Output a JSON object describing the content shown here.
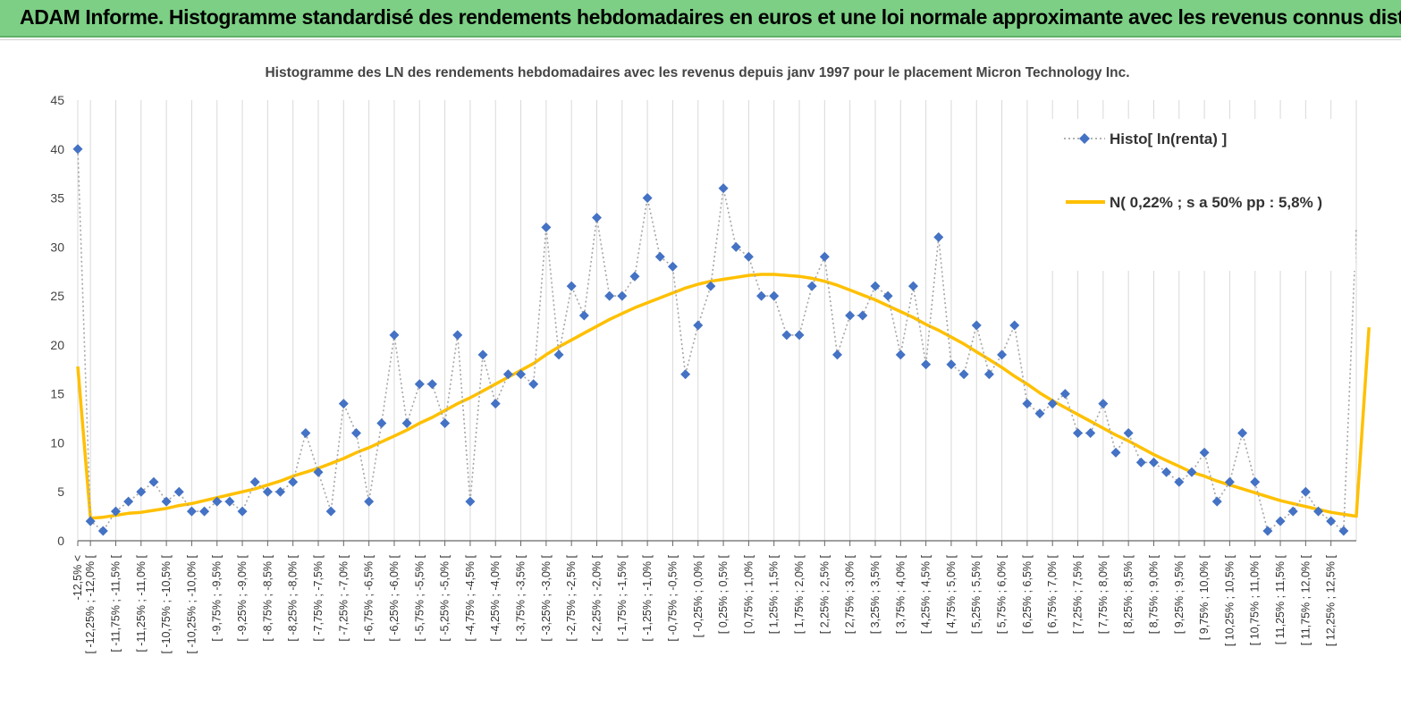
{
  "banner": {
    "title": "ADAM Informe. Histogramme standardisé des rendements hebdomadaires en euros et une loi normale approximante avec les revenus connus distribués"
  },
  "chart_data": {
    "type": "line",
    "title": "Histogramme  des LN des rendements  hebdomadaires avec les revenus depuis janv 1997 pour le placement Micron Technology Inc.",
    "xlabel": "",
    "ylabel": "",
    "ylim": [
      0,
      45
    ],
    "yticks": [
      0,
      5,
      10,
      15,
      20,
      25,
      30,
      35,
      40,
      45
    ],
    "grid": true,
    "legend_position": "top-right",
    "x_tick_labels": [
      "-12,5% <",
      "[ -12,25% ; -12,0% [",
      "[ -11,75% ; -11,5% [",
      "[ -11,25% ; -11,0% [",
      "[ -10,75% ; -10,5% [",
      "[ -10,25% ; -10,0% [",
      "[ -9,75% ; -9,5% [",
      "[ -9,25% ; -9,0% [",
      "[ -8,75% ; -8,5% [",
      "[ -8,25% ; -8,0% [",
      "[ -7,75% ; -7,5% [",
      "[ -7,25% ; -7,0% [",
      "[ -6,75% ; -6,5% [",
      "[ -6,25% ; -6,0% [",
      "[ -5,75% ; -5,5% [",
      "[ -5,25% ; -5,0% [",
      "[ -4,75% ; -4,5% [",
      "[ -4,25% ; -4,0% [",
      "[ -3,75% ; -3,5% [",
      "[ -3,25% ; -3,0% [",
      "[ -2,75% ; -2,5% [",
      "[ -2,25% ; -2,0% [",
      "[ -1,75% ; -1,5% [",
      "[ -1,25% ; -1,0% [",
      "[ -0,75% ; -0,5% [",
      "[ -0,25% ; 0,0% [",
      "[ 0,25% ; 0,5% [",
      "[ 0,75% ; 1,0% [",
      "[ 1,25% ; 1,5% [",
      "[ 1,75% ; 2,0% [",
      "[ 2,25% ; 2,5% [",
      "[ 2,75% ; 3,0% [",
      "[ 3,25% ; 3,5% [",
      "[ 3,75% ; 4,0% [",
      "[ 4,25% ; 4,5% [",
      "[ 4,75% ; 5,0% [",
      "[ 5,25% ; 5,5% [",
      "[ 5,75% ; 6,0% [",
      "[ 6,25% ; 6,5% [",
      "[ 6,75% ; 7,0% [",
      "[ 7,25% ; 7,5% [",
      "[ 7,75% ; 8,0% [",
      "[ 8,25% ; 8,5% [",
      "[ 8,75% ; 9,0% [",
      "[ 9,25% ; 9,5% [",
      "[ 9,75% ; 10,0% [",
      "[ 10,25% ; 10,5% [",
      "[ 10,75% ; 11,0% [",
      "[ 11,25% ; 11,5% [",
      "[ 11,75% ; 12,0% [",
      "[ 12,25% ; 12,5% ["
    ],
    "series": [
      {
        "name": "Histo[ ln(renta) ]",
        "color": "#4472c4",
        "marker": "diamond",
        "line_style": "dotted",
        "values": [
          40,
          2,
          1,
          3,
          4,
          5,
          6,
          4,
          5,
          3,
          3,
          4,
          4,
          3,
          6,
          5,
          5,
          6,
          11,
          7,
          3,
          14,
          11,
          4,
          12,
          21,
          12,
          16,
          16,
          12,
          21,
          4,
          19,
          14,
          17,
          17,
          16,
          32,
          19,
          26,
          23,
          33,
          25,
          25,
          27,
          35,
          29,
          28,
          17,
          22,
          26,
          36,
          30,
          29,
          25,
          25,
          21,
          21,
          26,
          29,
          19,
          23,
          23,
          26,
          25,
          19,
          26,
          18,
          31,
          18,
          17,
          22,
          17,
          19,
          22,
          14,
          13,
          14,
          15,
          11,
          11,
          14,
          9,
          11,
          8,
          8,
          7,
          6,
          7,
          9,
          4,
          6,
          11,
          6,
          1,
          2,
          3,
          5,
          3,
          2,
          1,
          32
        ]
      },
      {
        "name": "N( 0,22% ; s a 50% pp : 5,8% )",
        "color": "#ffc000",
        "values": [
          17.8,
          2.3,
          2.4,
          2.6,
          2.8,
          2.9,
          3.1,
          3.3,
          3.6,
          3.8,
          4.1,
          4.4,
          4.7,
          5.0,
          5.3,
          5.7,
          6.1,
          6.6,
          7.0,
          7.4,
          7.9,
          8.4,
          9.0,
          9.5,
          10.1,
          10.7,
          11.3,
          12.0,
          12.6,
          13.3,
          14.0,
          14.6,
          15.3,
          16.0,
          16.7,
          17.4,
          18.1,
          19.0,
          19.8,
          20.5,
          21.2,
          21.9,
          22.6,
          23.2,
          23.8,
          24.3,
          24.8,
          25.3,
          25.8,
          26.2,
          26.5,
          26.7,
          26.9,
          27.1,
          27.2,
          27.2,
          27.1,
          27.0,
          26.8,
          26.5,
          26.1,
          25.6,
          25.1,
          24.6,
          24.0,
          23.4,
          22.8,
          22.1,
          21.5,
          20.8,
          20.1,
          19.3,
          18.5,
          17.7,
          16.8,
          16.0,
          15.1,
          14.3,
          13.6,
          12.9,
          12.2,
          11.5,
          10.8,
          10.2,
          9.5,
          8.8,
          8.2,
          7.6,
          7.0,
          6.6,
          6.1,
          5.7,
          5.3,
          4.9,
          4.5,
          4.1,
          3.8,
          3.5,
          3.2,
          2.9,
          2.7,
          2.5,
          21.8
        ]
      }
    ]
  }
}
